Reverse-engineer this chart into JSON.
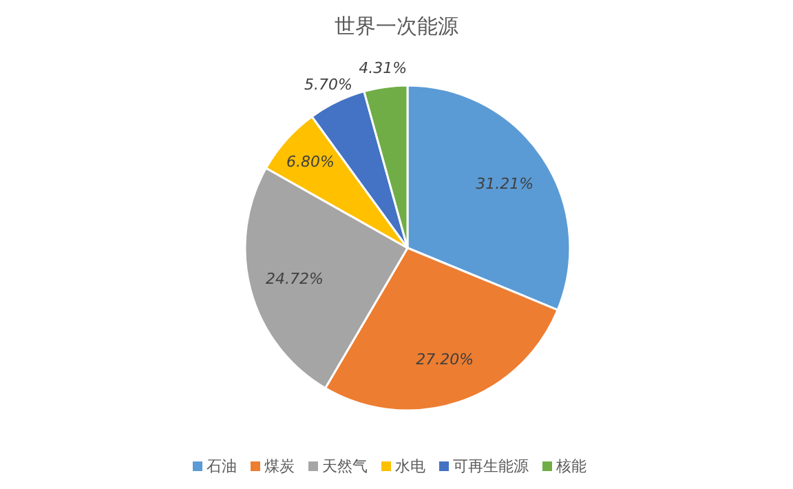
{
  "chart_data": {
    "type": "pie",
    "title": "世界一次能源",
    "categories": [
      "石油",
      "煤炭",
      "天然气",
      "水电",
      "可再生能源",
      "核能"
    ],
    "values": [
      31.21,
      27.2,
      24.72,
      6.8,
      5.7,
      4.31
    ],
    "value_labels": [
      "31.21%",
      "27.20%",
      "24.72%",
      "6.80%",
      "5.70%",
      "4.31%"
    ],
    "colors": [
      "#5b9bd5",
      "#ed7d31",
      "#a5a5a5",
      "#ffc000",
      "#4472c4",
      "#70ad47"
    ],
    "legend": "bottom"
  }
}
